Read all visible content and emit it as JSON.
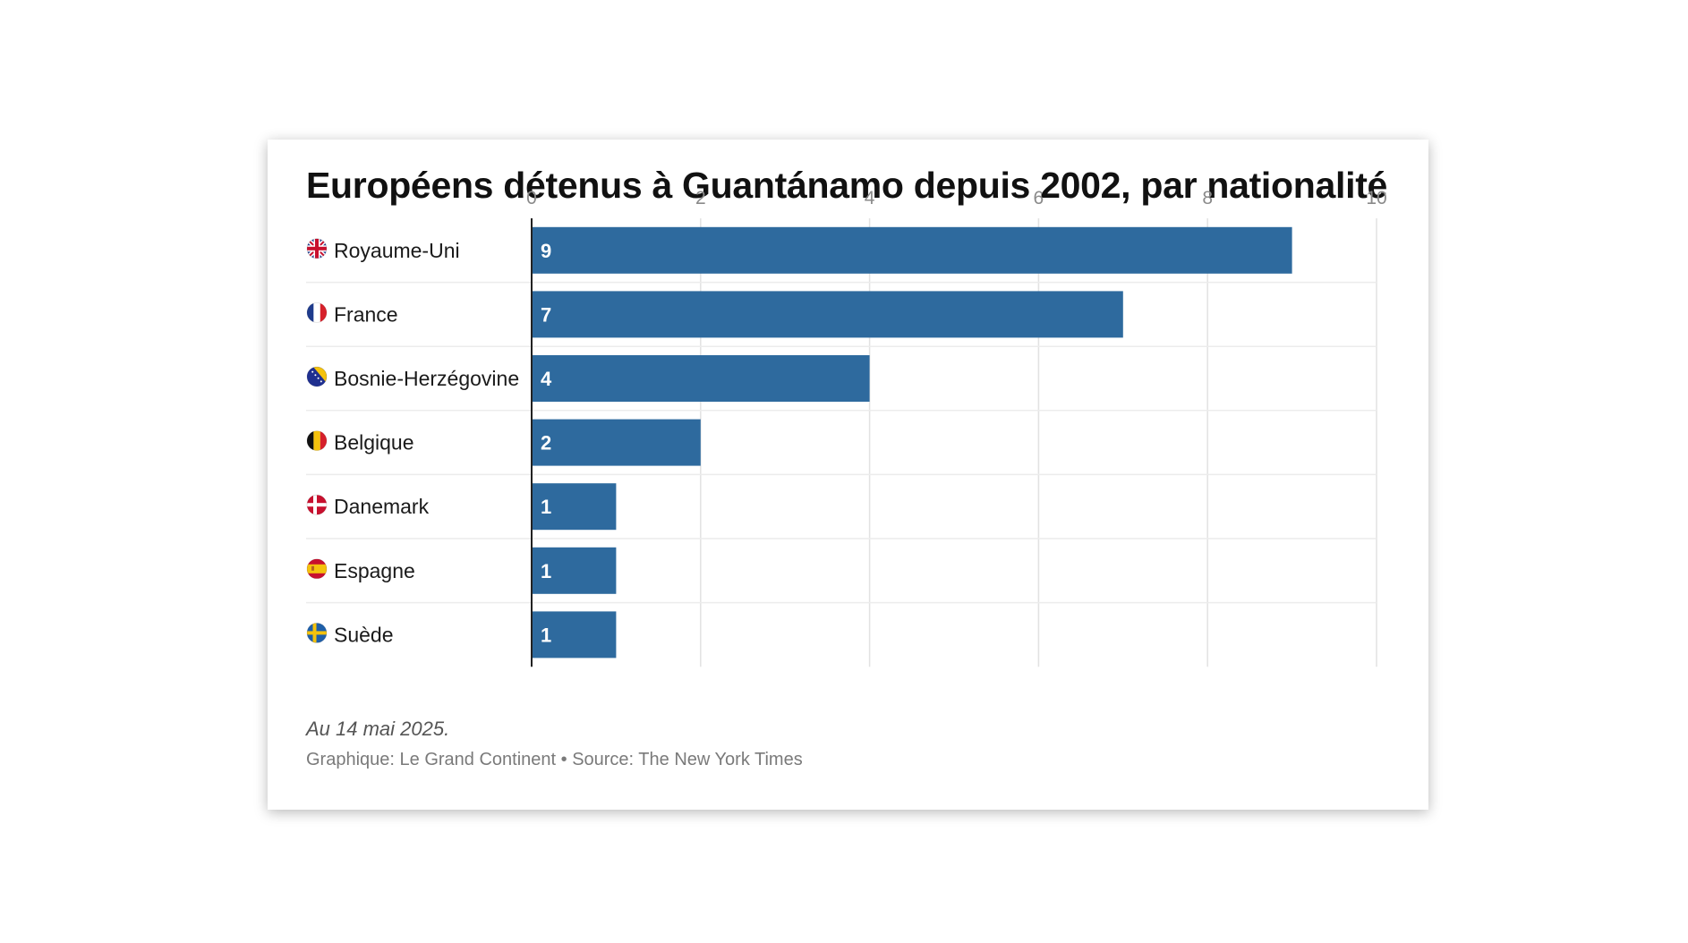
{
  "chart_data": {
    "type": "bar",
    "orientation": "horizontal",
    "title": "Européens détenus à Guantánamo depuis 2002, par nationalité",
    "categories": [
      "Royaume-Uni",
      "France",
      "Bosnie-Herzégovine",
      "Belgique",
      "Danemark",
      "Espagne",
      "Suède"
    ],
    "values": [
      9,
      7,
      4,
      2,
      1,
      1,
      1
    ],
    "flags": [
      "uk-flag-icon",
      "france-flag-icon",
      "bosnia-flag-icon",
      "belgium-flag-icon",
      "denmark-flag-icon",
      "spain-flag-icon",
      "sweden-flag-icon"
    ],
    "xlim": [
      0,
      10
    ],
    "xticks": [
      0,
      2,
      4,
      6,
      8,
      10
    ],
    "xlabel": "",
    "ylabel": "",
    "grid": true,
    "axis_position": "top",
    "bar_color": "#2e6a9e",
    "note": "Au 14 mai 2025.",
    "source": "Graphique: Le Grand Continent • Source: The New York Times"
  }
}
